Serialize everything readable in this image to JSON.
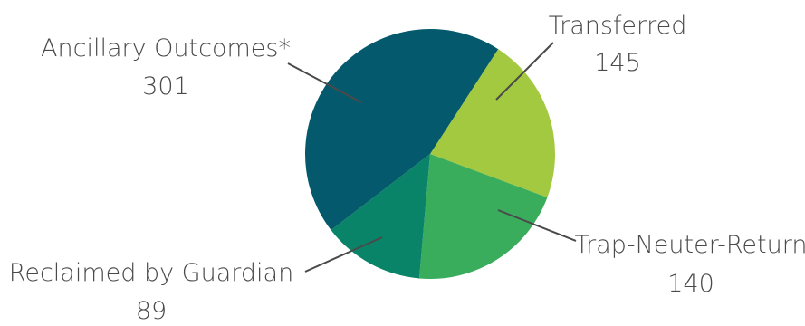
{
  "chart_data": {
    "type": "pie",
    "slices": [
      {
        "label": "Transferred",
        "value": 145,
        "color": "#a2c93f"
      },
      {
        "label": "Trap-Neuter-Return",
        "value": 140,
        "color": "#39ad5c"
      },
      {
        "label": "Reclaimed by Guardian",
        "value": 89,
        "color": "#0a8468"
      },
      {
        "label": "Ancillary Outcomes*",
        "value": 301,
        "color": "#045a6c"
      }
    ],
    "start_angle_deg": 33,
    "direction": "clockwise",
    "legend": "none",
    "data_labels": "outside-with-leader-lines"
  }
}
